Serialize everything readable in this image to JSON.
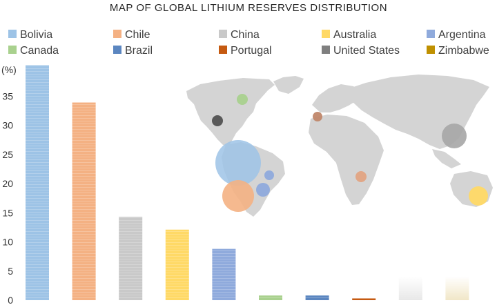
{
  "chart_data": {
    "type": "bar",
    "title": "MAP OF GLOBAL LITHIUM RESERVES DISTRIBUTION",
    "ylabel": "(%)",
    "ylim": [
      0,
      40
    ],
    "yticks": [
      "0",
      "5",
      "10",
      "15",
      "20",
      "25",
      "30",
      "35"
    ],
    "grid": false,
    "legend_position": "top",
    "categories": [
      "Bolivia",
      "Chile",
      "China",
      "Australia",
      "Argentina",
      "Canada",
      "Brazil",
      "Portugal",
      "United States",
      "Zimbabwe"
    ],
    "values": [
      40.3,
      33.9,
      14.3,
      12.1,
      8.8,
      0.8,
      0.8,
      0.3,
      4.1,
      4.1
    ],
    "colors": [
      "#9dc3e6",
      "#f4b183",
      "#c9c9c9",
      "#ffd966",
      "#8faadc",
      "#a9d18e",
      "#5b86c0",
      "#c55a11",
      "#7f7f7f",
      "#bf9000"
    ],
    "series": [
      {
        "values": [
          40.3,
          33.9,
          14.3,
          12.1,
          8.8,
          0.8,
          0.8,
          0.3,
          4.1,
          4.1
        ]
      }
    ]
  }
}
